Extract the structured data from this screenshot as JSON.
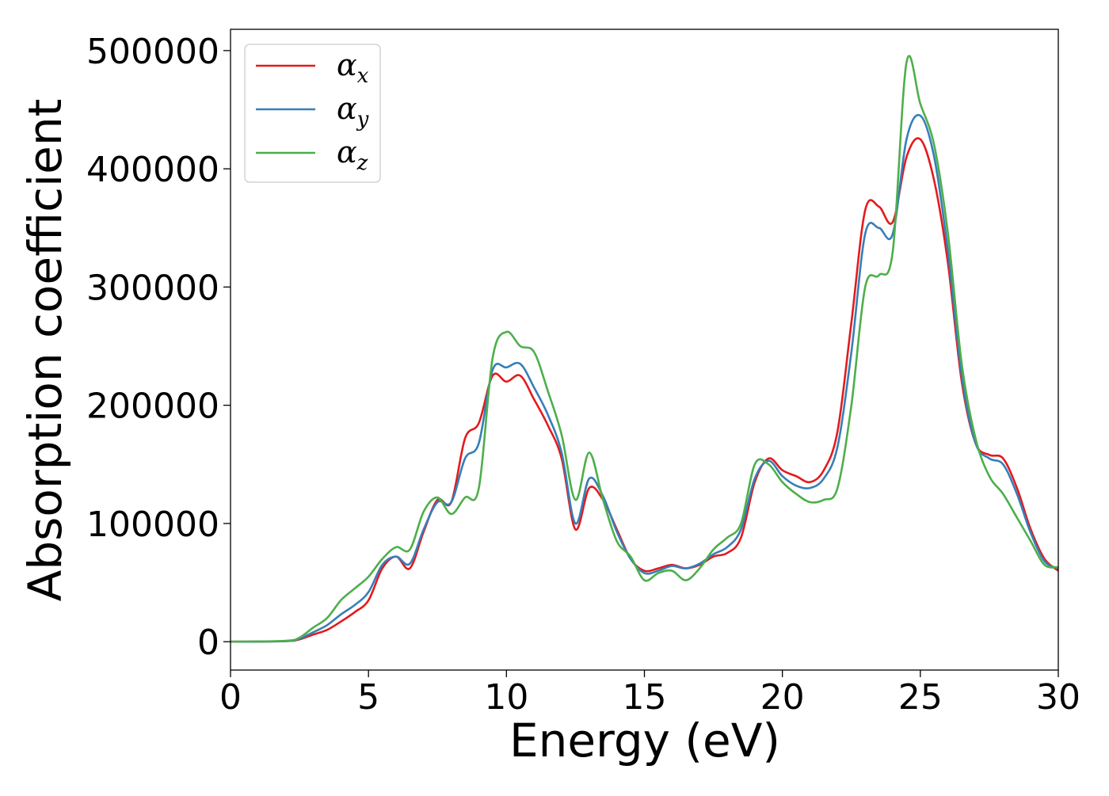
{
  "chart_data": {
    "type": "line",
    "xlabel": "Energy (eV)",
    "ylabel": "Absorption coefficient",
    "xlim": [
      0,
      30
    ],
    "ylim": [
      -24000,
      518000
    ],
    "x_ticks": [
      0,
      5,
      10,
      15,
      20,
      25,
      30
    ],
    "y_ticks": [
      0,
      100000,
      200000,
      300000,
      400000,
      500000
    ],
    "grid": false,
    "legend": "top-left",
    "series": [
      {
        "name": "α",
        "subscript": "x",
        "color": "#e41a1c",
        "x": [
          0,
          2,
          2.5,
          3,
          3.5,
          4,
          4.5,
          5,
          5.5,
          6,
          6.5,
          7,
          7.5,
          8,
          8.5,
          9,
          9.5,
          10,
          10.5,
          11,
          11.5,
          12,
          12.5,
          13,
          13.5,
          14,
          14.5,
          15,
          15.5,
          16,
          16.5,
          17,
          17.5,
          18,
          18.5,
          19,
          19.5,
          20,
          20.5,
          21,
          21.5,
          22,
          22.5,
          23,
          23.5,
          24,
          24.5,
          25,
          25.5,
          26,
          26.5,
          27,
          27.5,
          28,
          28.5,
          29,
          29.5,
          30
        ],
        "values": [
          0,
          500,
          2000,
          6000,
          10000,
          17000,
          25000,
          35000,
          62000,
          72000,
          62000,
          93000,
          120000,
          118000,
          172000,
          185000,
          225000,
          220000,
          225000,
          205000,
          183000,
          155000,
          95000,
          130000,
          120000,
          95000,
          70000,
          60000,
          62000,
          65000,
          62000,
          65000,
          72000,
          75000,
          88000,
          135000,
          155000,
          145000,
          140000,
          135000,
          145000,
          178000,
          270000,
          365000,
          368000,
          355000,
          410000,
          425000,
          390000,
          320000,
          220000,
          168000,
          158000,
          155000,
          130000,
          95000,
          70000,
          60000
        ]
      },
      {
        "name": "α",
        "subscript": "y",
        "color": "#377eb8",
        "x": [
          0,
          2,
          2.5,
          3,
          3.5,
          4,
          4.5,
          5,
          5.5,
          6,
          6.5,
          7,
          7.5,
          8,
          8.5,
          9,
          9.5,
          10,
          10.5,
          11,
          11.5,
          12,
          12.5,
          13,
          13.5,
          14,
          14.5,
          15,
          15.5,
          16,
          16.5,
          17,
          17.5,
          18,
          18.5,
          19,
          19.5,
          20,
          20.5,
          21,
          21.5,
          22,
          22.5,
          23,
          23.5,
          24,
          24.5,
          25,
          25.5,
          26,
          26.5,
          27,
          27.5,
          28,
          28.5,
          29,
          29.5,
          30
        ],
        "values": [
          0,
          500,
          2500,
          8000,
          14000,
          23000,
          31000,
          42000,
          65000,
          72000,
          66000,
          95000,
          118000,
          118000,
          155000,
          168000,
          230000,
          232000,
          235000,
          215000,
          192000,
          160000,
          100000,
          138000,
          123000,
          93000,
          70000,
          58000,
          60000,
          64000,
          62000,
          66000,
          74000,
          80000,
          95000,
          138000,
          153000,
          140000,
          132000,
          130000,
          138000,
          165000,
          245000,
          345000,
          350000,
          345000,
          425000,
          445000,
          410000,
          330000,
          225000,
          168000,
          155000,
          150000,
          125000,
          92000,
          68000,
          62000
        ]
      },
      {
        "name": "α",
        "subscript": "z",
        "color": "#4daf4a",
        "x": [
          0,
          2,
          2.5,
          3,
          3.5,
          4,
          4.5,
          5,
          5.5,
          6,
          6.5,
          7,
          7.5,
          8,
          8.5,
          9,
          9.5,
          10,
          10.5,
          11,
          11.5,
          12,
          12.5,
          13,
          13.5,
          14,
          14.5,
          15,
          15.5,
          16,
          16.5,
          17,
          17.5,
          18,
          18.5,
          19,
          19.5,
          20,
          20.5,
          21,
          21.5,
          22,
          22.5,
          23,
          23.5,
          24,
          24.5,
          25,
          25.5,
          26,
          26.5,
          27,
          27.5,
          28,
          28.5,
          29,
          29.5,
          30
        ],
        "values": [
          0,
          800,
          3500,
          12000,
          20000,
          35000,
          45000,
          55000,
          70000,
          80000,
          78000,
          110000,
          122000,
          108000,
          122000,
          130000,
          240000,
          262000,
          250000,
          245000,
          212000,
          175000,
          120000,
          160000,
          120000,
          85000,
          72000,
          52000,
          58000,
          60000,
          52000,
          62000,
          78000,
          88000,
          100000,
          150000,
          150000,
          135000,
          125000,
          118000,
          120000,
          130000,
          200000,
          300000,
          310000,
          330000,
          490000,
          455000,
          420000,
          345000,
          235000,
          172000,
          140000,
          125000,
          105000,
          85000,
          65000,
          63000
        ]
      }
    ]
  }
}
